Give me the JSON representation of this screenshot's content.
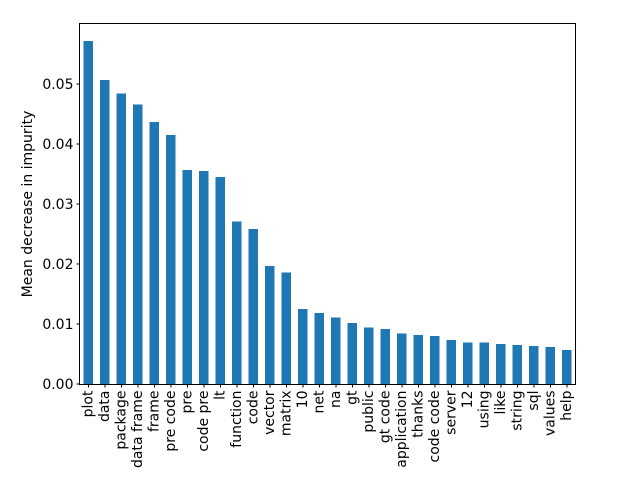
{
  "figure": {
    "background": "#ffffff"
  },
  "chart_data": {
    "type": "bar",
    "title": "",
    "xlabel": "",
    "ylabel": "Mean decrease in impurity",
    "categories": [
      "plot",
      "data",
      "package",
      "data frame",
      "frame",
      "pre code",
      "pre",
      "code pre",
      "lt",
      "function",
      "code",
      "vector",
      "matrix",
      "10",
      "net",
      "na",
      "gt",
      "public",
      "gt code",
      "application",
      "thanks",
      "code code",
      "server",
      "12",
      "using",
      "like",
      "string",
      "sql",
      "values",
      "help"
    ],
    "values": [
      0.0572,
      0.0507,
      0.0484,
      0.0466,
      0.0437,
      0.0415,
      0.0357,
      0.0355,
      0.0345,
      0.0271,
      0.0258,
      0.0197,
      0.0186,
      0.0125,
      0.0118,
      0.0111,
      0.0102,
      0.0094,
      0.0092,
      0.0084,
      0.0082,
      0.008,
      0.0073,
      0.0069,
      0.0069,
      0.0067,
      0.0065,
      0.0063,
      0.0062,
      0.0057
    ],
    "ylim": [
      0,
      0.06
    ],
    "yticks": [
      0,
      0.01,
      0.02,
      0.03,
      0.04,
      0.05
    ],
    "ytick_labels": [
      "0.00",
      "0.01",
      "0.02",
      "0.03",
      "0.04",
      "0.05"
    ],
    "x_tick_rotation": 90,
    "grid": false,
    "legend": "none",
    "bar_color": "#1f77b4",
    "axis_color": "#000000",
    "text_color": "#000000"
  }
}
